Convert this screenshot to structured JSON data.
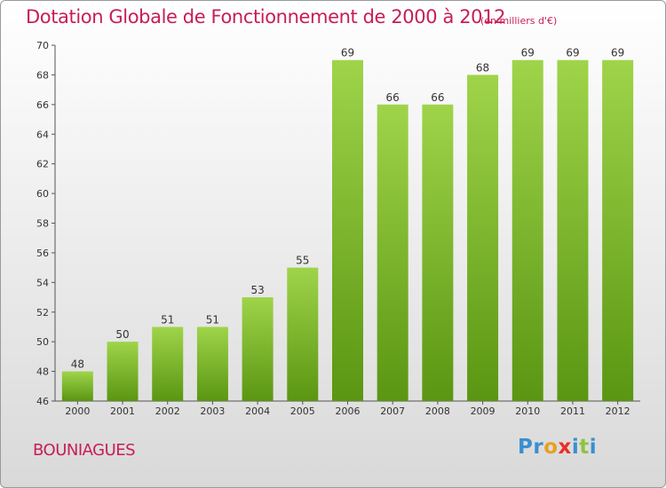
{
  "title": "Dotation Globale de Fonctionnement de 2000 à 2012",
  "unit_label": "(en milliers d'€)",
  "place": "BOUNIAGUES",
  "logo": {
    "letters": [
      "P",
      "r",
      "o",
      "x",
      "i",
      "t",
      "i"
    ],
    "colors": [
      "#3a8fd0",
      "#3a8fd0",
      "#e8a020",
      "#e83020",
      "#3a8fd0",
      "#8cc43c",
      "#3a8fd0"
    ]
  },
  "colors": {
    "title": "#c71d5a",
    "bar_top": "#9fd44a",
    "bar_bottom": "#5a9612"
  },
  "chart_data": {
    "type": "bar",
    "categories": [
      "2000",
      "2001",
      "2002",
      "2003",
      "2004",
      "2005",
      "2006",
      "2007",
      "2008",
      "2009",
      "2010",
      "2011",
      "2012"
    ],
    "values": [
      48,
      50,
      51,
      51,
      53,
      55,
      69,
      66,
      66,
      68,
      69,
      69,
      69
    ],
    "ylim": [
      46,
      70
    ],
    "yticks": [
      46,
      48,
      50,
      52,
      54,
      56,
      58,
      60,
      62,
      64,
      66,
      68,
      70
    ],
    "grid": false
  }
}
